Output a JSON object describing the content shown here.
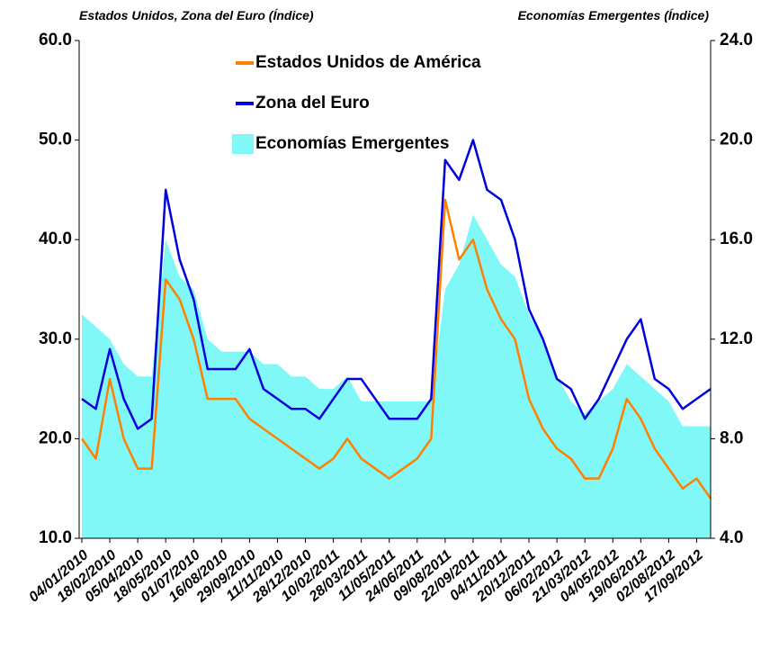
{
  "chart_data": {
    "type": "line",
    "y_label": "Estados Unidos, Zona del Euro (Índice)",
    "y2_label": "Economías Emergentes (Índice)",
    "categories": [
      "04/01/2010",
      null,
      "18/02/2010",
      null,
      "05/04/2010",
      null,
      "18/05/2010",
      null,
      "01/07/2010",
      null,
      "16/08/2010",
      null,
      "29/09/2010",
      null,
      "11/11/2010",
      null,
      "28/12/2010",
      null,
      "10/02/2011",
      null,
      "28/03/2011",
      null,
      "11/05/2011",
      null,
      "24/06/2011",
      null,
      "09/08/2011",
      null,
      "22/09/2011",
      null,
      "04/11/2011",
      null,
      "20/12/2011",
      null,
      "06/02/2012",
      null,
      "21/03/2012",
      null,
      "04/05/2012",
      null,
      "19/06/2012",
      null,
      "02/08/2012",
      null,
      "17/09/2012",
      null
    ],
    "series": [
      {
        "name": "Economías Emergentes",
        "color": "#80f8f8",
        "axis": "y2",
        "fill": true,
        "values": [
          13,
          12.5,
          12,
          11,
          10.5,
          10.5,
          16,
          14.5,
          14,
          12,
          11.5,
          11.5,
          11.5,
          11,
          11,
          10.5,
          10.5,
          10,
          10,
          10.5,
          9.5,
          9.5,
          9.5,
          9.5,
          9.5,
          9.5,
          14,
          15,
          17,
          16,
          15,
          14.5,
          13,
          12,
          10.5,
          9.5,
          9,
          9.5,
          10,
          11,
          10.5,
          10,
          9.5,
          8.5,
          8.5,
          8.5
        ]
      },
      {
        "name": "Estados Unidos de América",
        "color": "#ff8000",
        "values": [
          20,
          18,
          26,
          20,
          17,
          17,
          36,
          34,
          30,
          24,
          24,
          24,
          22,
          21,
          20,
          19,
          18,
          17,
          18,
          20,
          18,
          17,
          16,
          17,
          18,
          20,
          44,
          38,
          40,
          35,
          32,
          30,
          24,
          21,
          19,
          18,
          16,
          16,
          19,
          24,
          22,
          19,
          17,
          15,
          16,
          14
        ]
      },
      {
        "name": "Zona del Euro",
        "color": "#0000dd",
        "values": [
          24,
          23,
          29,
          24,
          21,
          22,
          45,
          38,
          34,
          27,
          27,
          27,
          29,
          25,
          24,
          23,
          23,
          22,
          24,
          26,
          26,
          24,
          22,
          22,
          22,
          24,
          48,
          46,
          50,
          45,
          44,
          40,
          33,
          30,
          26,
          25,
          22,
          24,
          27,
          30,
          32,
          26,
          25,
          23,
          24,
          25
        ]
      }
    ],
    "ylim": [
      10,
      60
    ],
    "yticks": [
      {
        "value": 10,
        "label": "10.0"
      },
      {
        "value": 20,
        "label": "20.0"
      },
      {
        "value": 30,
        "label": "30.0"
      },
      {
        "value": 40,
        "label": "40.0"
      },
      {
        "value": 50,
        "label": "50.0"
      },
      {
        "value": 60,
        "label": "60.0"
      }
    ],
    "y2lim": [
      4,
      24
    ],
    "y2ticks": [
      {
        "value": 4,
        "label": "4.0"
      },
      {
        "value": 8,
        "label": "8.0"
      },
      {
        "value": 12,
        "label": "12.0"
      },
      {
        "value": 16,
        "label": "16.0"
      },
      {
        "value": 20,
        "label": "20.0"
      },
      {
        "value": 24,
        "label": "24.0"
      }
    ],
    "legend": "top"
  }
}
